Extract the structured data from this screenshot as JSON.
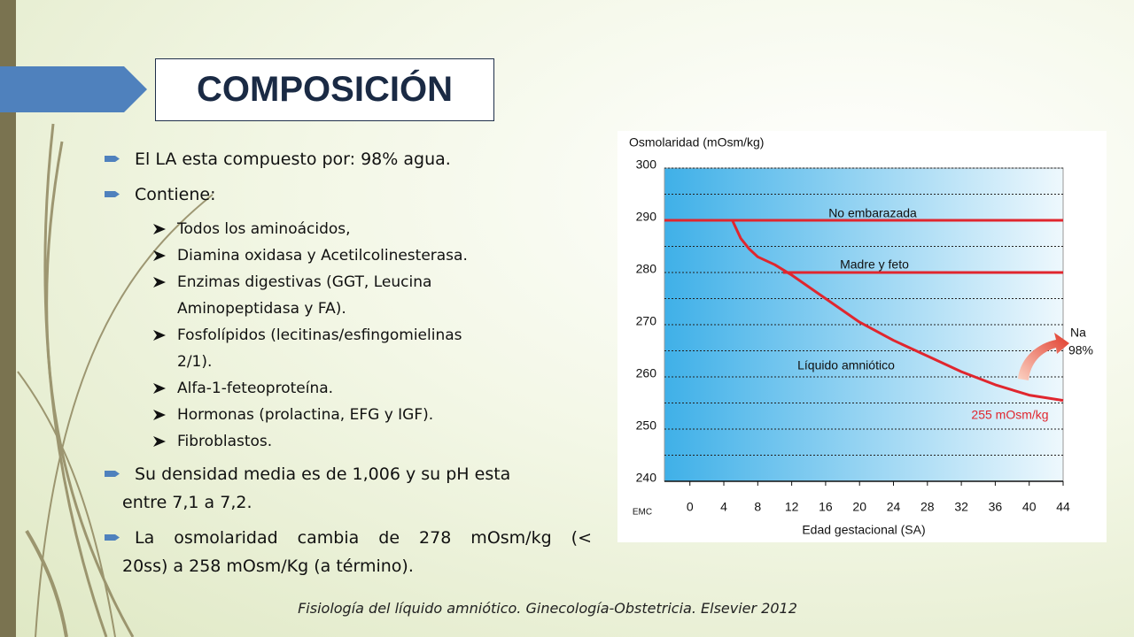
{
  "title": "COMPOSICIÓN",
  "bullets": [
    {
      "lines": [
        "El LA esta compuesto por: 98% agua."
      ]
    },
    {
      "lines": [
        "Contiene:"
      ],
      "items": [
        [
          "Todos los aminoácidos,"
        ],
        [
          "Diamina oxidasa y Acetilcolinesterasa."
        ],
        [
          "Enzimas digestivas (GGT, Leucina",
          "Aminopeptidasa y FA)."
        ],
        [
          "Fosfolípidos (lecitinas/esfingomielinas",
          "2/1)."
        ],
        [
          "Alfa-1-feteoproteína."
        ],
        [
          "Hormonas (prolactina, EFG y IGF)."
        ],
        [
          "Fibroblastos."
        ]
      ]
    },
    {
      "lines": [
        "Su densidad media es de 1,006 y su pH esta",
        "entre 7,1 a 7,2."
      ]
    },
    {
      "lines": [
        "La osmolaridad cambia de 278 mOsm/kg (<",
        "20ss) a 258 mOsm/Kg (a término)."
      ]
    }
  ],
  "source": "Fisiología del líquido amniótico. Ginecología-Obstetricia. Elsevier 2012",
  "chart_data": {
    "type": "line",
    "y_label": "Osmolaridad (mOsm/kg)",
    "x_label": "Edad gestacional (SA)",
    "xlim": [
      -3,
      44
    ],
    "xticks": [
      0,
      4,
      8,
      12,
      16,
      20,
      24,
      28,
      32,
      36,
      40,
      44
    ],
    "ylim": [
      240,
      300
    ],
    "yticks": [
      240,
      250,
      260,
      270,
      280,
      290,
      300
    ],
    "minor_yticks": [
      245,
      255,
      265,
      275,
      285,
      295
    ],
    "grid": true,
    "series": [
      {
        "name": "No embarazada",
        "color": "#e0262e",
        "x": [
          -3,
          44
        ],
        "values": [
          290,
          290
        ]
      },
      {
        "name": "Madre y feto",
        "color": "#e0262e",
        "x": [
          11,
          44
        ],
        "values": [
          280,
          280
        ]
      },
      {
        "name": "Líquido amniótico",
        "color": "#e0262e",
        "x": [
          5,
          6,
          7,
          8,
          10,
          12,
          16,
          20,
          24,
          28,
          32,
          36,
          40,
          44
        ],
        "values": [
          290,
          286.5,
          284.5,
          283,
          281.5,
          279.5,
          275,
          270.5,
          267,
          264,
          261,
          258.5,
          256.5,
          255.5
        ]
      }
    ],
    "annotations": {
      "end_value": "255 mOsm/kg",
      "ion": "Na",
      "ion_share": "98%",
      "logo": "EMC"
    }
  }
}
